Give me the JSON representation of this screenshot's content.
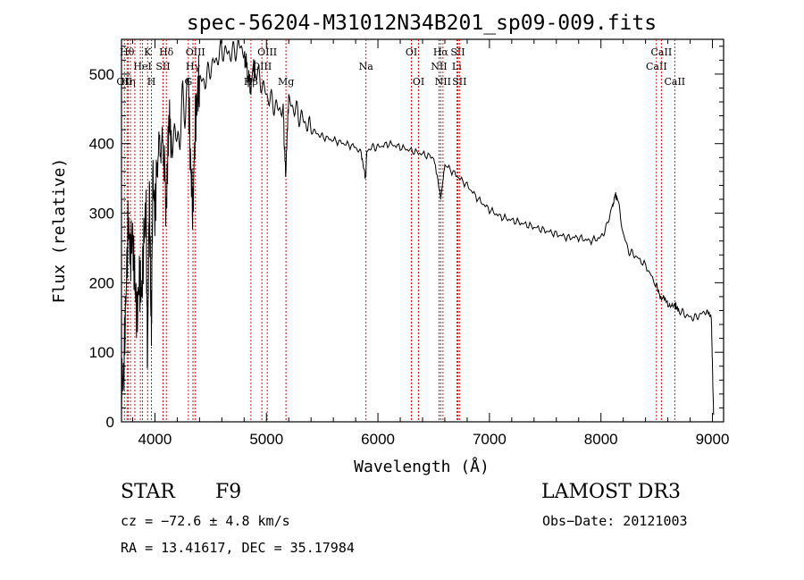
{
  "chart_data": {
    "type": "line",
    "title": "spec-56204-M31012N34B201_sp09-009.fits",
    "xlabel": "Wavelength (Å)",
    "ylabel": "Flux (relative)",
    "xlim": [
      3700,
      9100
    ],
    "ylim": [
      0,
      550
    ],
    "xticks": [
      4000,
      5000,
      6000,
      7000,
      8000,
      9000
    ],
    "yticks": [
      0,
      100,
      200,
      300,
      400,
      500
    ],
    "spectrum": {
      "x": [
        3700,
        3720,
        3740,
        3760,
        3780,
        3800,
        3820,
        3840,
        3860,
        3880,
        3900,
        3920,
        3933,
        3950,
        3968,
        3980,
        4000,
        4020,
        4050,
        4080,
        4102,
        4120,
        4150,
        4200,
        4250,
        4300,
        4320,
        4340,
        4360,
        4380,
        4400,
        4450,
        4500,
        4550,
        4600,
        4650,
        4700,
        4750,
        4800,
        4830,
        4861,
        4880,
        4900,
        4950,
        5000,
        5050,
        5100,
        5150,
        5172,
        5200,
        5250,
        5300,
        5350,
        5400,
        5450,
        5500,
        5600,
        5700,
        5800,
        5850,
        5890,
        5900,
        5950,
        6000,
        6100,
        6200,
        6300,
        6400,
        6500,
        6563,
        6600,
        6700,
        6800,
        6900,
        7000,
        7100,
        7200,
        7300,
        7400,
        7500,
        7600,
        7700,
        7800,
        7900,
        8000,
        8050,
        8100,
        8130,
        8150,
        8200,
        8250,
        8300,
        8400,
        8500,
        8542,
        8560,
        8600,
        8662,
        8700,
        8750,
        8800,
        8850,
        8900,
        8950,
        8990,
        9000,
        9010
      ],
      "y": [
        50,
        70,
        180,
        290,
        240,
        270,
        200,
        150,
        210,
        180,
        260,
        310,
        80,
        330,
        120,
        350,
        300,
        380,
        400,
        390,
        300,
        420,
        420,
        400,
        450,
        480,
        370,
        300,
        420,
        470,
        490,
        490,
        510,
        520,
        535,
        530,
        530,
        540,
        535,
        500,
        480,
        510,
        505,
        490,
        470,
        460,
        450,
        450,
        350,
        460,
        450,
        440,
        430,
        420,
        415,
        410,
        405,
        400,
        395,
        385,
        350,
        390,
        395,
        395,
        400,
        395,
        390,
        385,
        380,
        320,
        370,
        355,
        340,
        320,
        305,
        295,
        290,
        285,
        280,
        275,
        270,
        265,
        265,
        260,
        265,
        280,
        310,
        325,
        320,
        270,
        245,
        240,
        225,
        195,
        175,
        180,
        170,
        168,
        160,
        155,
        150,
        150,
        155,
        160,
        150,
        80,
        10
      ]
    },
    "line_markers": [
      {
        "w": 3726,
        "label": "OII",
        "row": 3
      },
      {
        "w": 3750,
        "label": "Hθ",
        "row": 1
      },
      {
        "w": 3760,
        "label": "Hη",
        "row": 3
      },
      {
        "w": 3780,
        "label": "",
        "row": 0
      },
      {
        "w": 3820,
        "label": "",
        "row": 0
      },
      {
        "w": 3869,
        "label": "",
        "row": 0
      },
      {
        "w": 3889,
        "label": "HeI",
        "row": 2
      },
      {
        "w": 3934,
        "label": "K",
        "row": 1
      },
      {
        "w": 3969,
        "label": "H",
        "row": 3
      },
      {
        "w": 4072,
        "label": "SII",
        "row": 2
      },
      {
        "w": 4102,
        "label": "Hδ",
        "row": 1
      },
      {
        "w": 4300,
        "label": "G",
        "row": 3
      },
      {
        "w": 4341,
        "label": "Hγ",
        "row": 2
      },
      {
        "w": 4363,
        "label": "OIII",
        "row": 1
      },
      {
        "w": 4861,
        "label": "Hβ",
        "row": 3
      },
      {
        "w": 4959,
        "label": "OIII",
        "row": 2
      },
      {
        "w": 5007,
        "label": "OIII",
        "row": 1
      },
      {
        "w": 5175,
        "label": "Mg",
        "row": 3
      },
      {
        "w": 5893,
        "label": "Na",
        "row": 2
      },
      {
        "w": 6300,
        "label": "OI",
        "row": 1
      },
      {
        "w": 6364,
        "label": "OI",
        "row": 3
      },
      {
        "w": 6548,
        "label": "NII",
        "row": 2
      },
      {
        "w": 6563,
        "label": "Hα",
        "row": 1
      },
      {
        "w": 6583,
        "label": "NII",
        "row": 3
      },
      {
        "w": 6707,
        "label": "Li",
        "row": 2
      },
      {
        "w": 6716,
        "label": "SII",
        "row": 1
      },
      {
        "w": 6731,
        "label": "SII",
        "row": 3
      },
      {
        "w": 8498,
        "label": "CaII",
        "row": 2
      },
      {
        "w": 8542,
        "label": "CaII",
        "row": 1
      },
      {
        "w": 8662,
        "label": "CaII",
        "row": 3
      }
    ]
  },
  "info": {
    "object_class": "STAR",
    "subclass": "F9",
    "survey": "LAMOST DR3",
    "cz": "cz = −72.6 ± 4.8 km/s",
    "obs_date": "Obs−Date: 20121003",
    "coords": "RA =  13.41617, DEC =  35.17984"
  }
}
